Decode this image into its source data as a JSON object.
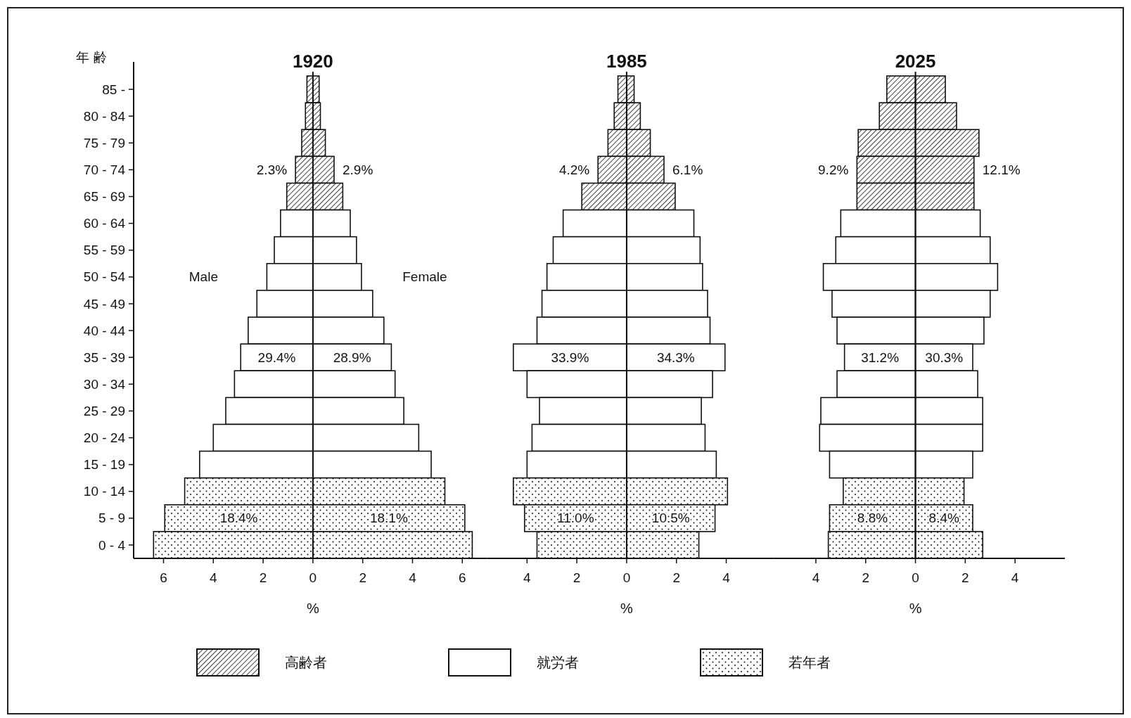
{
  "chart_data": [
    {
      "type": "bar",
      "orientation": "horizontal",
      "stacked": true,
      "title": "1920",
      "xlabel": "%",
      "ylabel": "年 齢",
      "categories": [
        "85 -",
        "80 - 84",
        "75 - 79",
        "70 - 74",
        "65 - 69",
        "60 - 64",
        "55 - 59",
        "50 - 54",
        "45 - 49",
        "40 - 44",
        "35 - 39",
        "30 - 34",
        "25 - 29",
        "20 - 24",
        "15 - 19",
        "10 - 14",
        "5 - 9",
        "0 - 4"
      ],
      "xlim": [
        -7.2,
        7.0
      ],
      "xticks": [
        {
          "value": -6,
          "label": "6"
        },
        {
          "value": -4,
          "label": "4"
        },
        {
          "value": -2,
          "label": "2"
        },
        0,
        2,
        4,
        6
      ],
      "legend": "bottom",
      "series": [
        {
          "name": "高齢者",
          "color": "#111111",
          "values": [
            -0.24,
            -0.3,
            -0.45,
            -0.7,
            -1.05,
            null,
            null,
            null,
            null,
            null,
            null,
            null,
            null,
            null,
            null,
            null,
            null,
            null
          ]
        },
        {
          "color": "#111111",
          "values": [
            0.25,
            0.3,
            0.5,
            0.85,
            1.2,
            null,
            null,
            null,
            null,
            null,
            null,
            null,
            null,
            null,
            null,
            null,
            null,
            null
          ]
        },
        {
          "name": "就労者",
          "color": "#ffffff",
          "values": [
            null,
            null,
            null,
            null,
            null,
            -1.3,
            -1.55,
            -1.85,
            -2.25,
            -2.6,
            -2.9,
            -3.15,
            -3.5,
            -4.0,
            -4.55,
            null,
            null,
            null
          ]
        },
        {
          "color": "#ffffff",
          "values": [
            null,
            null,
            null,
            null,
            null,
            1.5,
            1.75,
            1.95,
            2.4,
            2.85,
            3.15,
            3.3,
            3.65,
            4.25,
            4.75,
            null,
            null,
            null
          ]
        },
        {
          "name": "若年者",
          "color": "#111111",
          "values": [
            null,
            null,
            null,
            null,
            null,
            null,
            null,
            null,
            null,
            null,
            null,
            null,
            null,
            null,
            null,
            -5.15,
            -5.95,
            -6.4
          ]
        },
        {
          "color": "#111111",
          "values": [
            null,
            null,
            null,
            null,
            null,
            null,
            null,
            null,
            null,
            null,
            null,
            null,
            null,
            null,
            null,
            5.3,
            6.1,
            6.4
          ]
        }
      ],
      "annotations": [
        "2.3%",
        "2.9%",
        "29.4%",
        "28.9%",
        "18.4%",
        "18.1%",
        "Male",
        "Female"
      ]
    },
    {
      "type": "bar",
      "orientation": "horizontal",
      "stacked": true,
      "title": "1985",
      "xlabel": "%",
      "tick_labels": "x",
      "categories": [
        "85 -",
        "80 - 84",
        "75 - 79",
        "70 - 74",
        "65 - 69",
        "60 - 64",
        "55 - 59",
        "50 - 54",
        "45 - 49",
        "40 - 44",
        "35 - 39",
        "30 - 34",
        "25 - 29",
        "20 - 24",
        "15 - 19",
        "10 - 14",
        "5 - 9",
        "0 - 4"
      ],
      "xlim": [
        -5.6,
        5.9
      ],
      "xticks": [
        {
          "value": -4,
          "label": "4"
        },
        {
          "value": -2,
          "label": "2"
        },
        0,
        2,
        4
      ],
      "series": [
        {
          "color": "#111111",
          "values": [
            -0.35,
            -0.5,
            -0.75,
            -1.15,
            -1.8,
            null,
            null,
            null,
            null,
            null,
            null,
            null,
            null,
            null,
            null,
            null,
            null,
            null
          ]
        },
        {
          "color": "#111111",
          "values": [
            0.3,
            0.55,
            0.95,
            1.5,
            1.95,
            null,
            null,
            null,
            null,
            null,
            null,
            null,
            null,
            null,
            null,
            null,
            null,
            null
          ]
        },
        {
          "color": "#ffffff",
          "values": [
            null,
            null,
            null,
            null,
            null,
            -2.55,
            -2.95,
            -3.2,
            -3.4,
            -3.6,
            -4.55,
            -4.0,
            -3.5,
            -3.8,
            -4.0,
            null,
            null,
            null
          ]
        },
        {
          "color": "#ffffff",
          "values": [
            null,
            null,
            null,
            null,
            null,
            2.7,
            2.95,
            3.05,
            3.25,
            3.35,
            3.95,
            3.45,
            3.0,
            3.15,
            3.6,
            null,
            null,
            null
          ]
        },
        {
          "color": "#111111",
          "values": [
            null,
            null,
            null,
            null,
            null,
            null,
            null,
            null,
            null,
            null,
            null,
            null,
            null,
            null,
            null,
            -4.55,
            -4.1,
            -3.6
          ]
        },
        {
          "color": "#111111",
          "values": [
            null,
            null,
            null,
            null,
            null,
            null,
            null,
            null,
            null,
            null,
            null,
            null,
            null,
            null,
            null,
            4.05,
            3.55,
            2.9
          ]
        }
      ],
      "annotations": [
        "4.2%",
        "6.1%",
        "33.9%",
        "34.3%",
        "11.0%",
        "10.5%"
      ]
    },
    {
      "type": "bar",
      "orientation": "horizontal",
      "stacked": true,
      "title": "2025",
      "xlabel": "%",
      "tick_labels": "x",
      "categories": [
        "85 -",
        "80 - 84",
        "75 - 79",
        "70 - 74",
        "65 - 69",
        "60 - 64",
        "55 - 59",
        "50 - 54",
        "45 - 49",
        "40 - 44",
        "35 - 39",
        "30 - 34",
        "25 - 29",
        "20 - 24",
        "15 - 19",
        "10 - 14",
        "5 - 9",
        "0 - 4"
      ],
      "xlim": [
        -5.7,
        6.0
      ],
      "xticks": [
        {
          "value": -4,
          "label": "4"
        },
        {
          "value": -2,
          "label": "2"
        },
        0,
        2,
        4
      ],
      "series": [
        {
          "color": "#111111",
          "values": [
            -1.15,
            -1.45,
            -2.3,
            -2.35,
            -2.35,
            null,
            null,
            null,
            null,
            null,
            null,
            null,
            null,
            null,
            null,
            null,
            null,
            null
          ]
        },
        {
          "color": "#111111",
          "values": [
            1.2,
            1.65,
            2.55,
            2.35,
            2.35,
            null,
            null,
            null,
            null,
            null,
            null,
            null,
            null,
            null,
            null,
            null,
            null,
            null
          ]
        },
        {
          "color": "#ffffff",
          "values": [
            null,
            null,
            null,
            null,
            null,
            -3.0,
            -3.2,
            -3.7,
            -3.35,
            -3.15,
            -2.85,
            -3.15,
            -3.8,
            -3.85,
            -3.45,
            null,
            null,
            null
          ]
        },
        {
          "color": "#ffffff",
          "values": [
            null,
            null,
            null,
            null,
            null,
            2.6,
            3.0,
            3.3,
            3.0,
            2.75,
            2.3,
            2.5,
            2.7,
            2.7,
            2.3,
            null,
            null,
            null
          ]
        },
        {
          "color": "#111111",
          "values": [
            null,
            null,
            null,
            null,
            null,
            null,
            null,
            null,
            null,
            null,
            null,
            null,
            null,
            null,
            null,
            -2.9,
            -3.45,
            -3.5
          ]
        },
        {
          "color": "#111111",
          "values": [
            null,
            null,
            null,
            null,
            null,
            null,
            null,
            null,
            null,
            null,
            null,
            null,
            null,
            null,
            null,
            1.95,
            2.3,
            2.7
          ]
        }
      ],
      "annotations": [
        "9.2%",
        "12.1%",
        "31.2%",
        "30.3%",
        "8.8%",
        "8.4%"
      ]
    }
  ]
}
